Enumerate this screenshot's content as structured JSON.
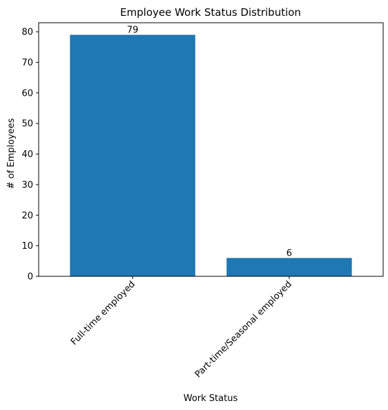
{
  "chart_data": {
    "type": "bar",
    "title": "Employee Work Status Distribution",
    "xlabel": "Work Status",
    "ylabel": "# of Employees",
    "categories": [
      "Full-time employed",
      "Part-time/Seasonal employed"
    ],
    "values": [
      79,
      6
    ],
    "data_labels": [
      "79",
      "6"
    ],
    "ylim": [
      0,
      82.95
    ],
    "yticks": [
      0,
      10,
      20,
      30,
      40,
      50,
      60,
      70,
      80
    ],
    "ytick_labels": [
      "0",
      "10",
      "20",
      "30",
      "40",
      "50",
      "60",
      "70",
      "80"
    ],
    "grid": false,
    "legend": "none",
    "bar_color": "#1f77b4",
    "xtick_rotation_deg": 45
  }
}
